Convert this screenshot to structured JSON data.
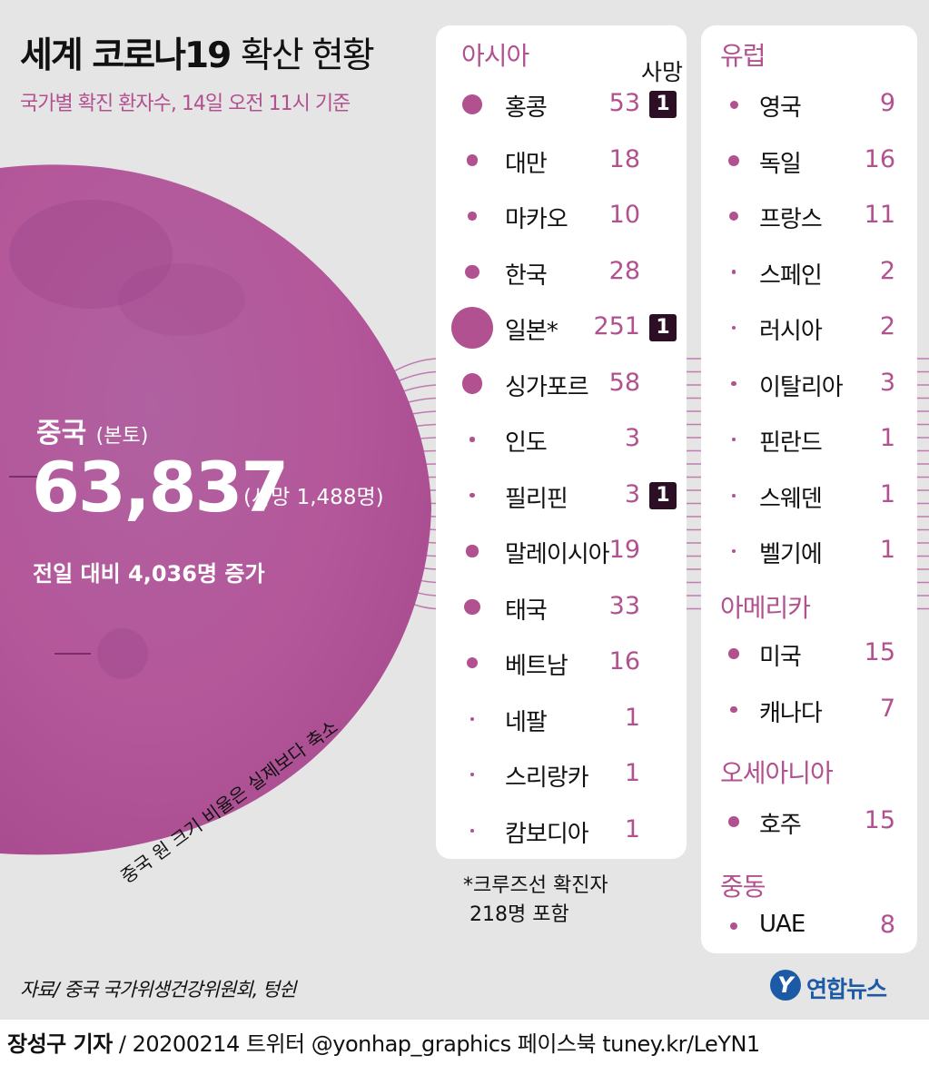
{
  "header": {
    "title_bold": "세계 코로나19",
    "title_light": "확산 현황",
    "subtitle": "국가별 확진 환자수, 14일 오전 11시 기준"
  },
  "china": {
    "name": "중국",
    "qualifier": "(본토)",
    "value": "63,837",
    "death_text": "(사망 1,488명)",
    "increase_text": "전일 대비 4,036명 증가",
    "scale_note": "중국 원 크기 비율은 실제보다 축소"
  },
  "death_header": "사망",
  "asia": {
    "title": "아시아",
    "items": [
      {
        "name": "홍콩",
        "value": "53",
        "death": "1",
        "size": 53
      },
      {
        "name": "대만",
        "value": "18",
        "death": "",
        "size": 18
      },
      {
        "name": "마카오",
        "value": "10",
        "death": "",
        "size": 10
      },
      {
        "name": "한국",
        "value": "28",
        "death": "",
        "size": 28
      },
      {
        "name": "일본*",
        "value": "251",
        "death": "1",
        "size": 251
      },
      {
        "name": "싱가포르",
        "value": "58",
        "death": "",
        "size": 58
      },
      {
        "name": "인도",
        "value": "3",
        "death": "",
        "size": 3
      },
      {
        "name": "필리핀",
        "value": "3",
        "death": "1",
        "size": 3
      },
      {
        "name": "말레이시아",
        "value": "19",
        "death": "",
        "size": 19
      },
      {
        "name": "태국",
        "value": "33",
        "death": "",
        "size": 33
      },
      {
        "name": "베트남",
        "value": "16",
        "death": "",
        "size": 16
      },
      {
        "name": "네팔",
        "value": "1",
        "death": "",
        "size": 1
      },
      {
        "name": "스리랑카",
        "value": "1",
        "death": "",
        "size": 1
      },
      {
        "name": "캄보디아",
        "value": "1",
        "death": "",
        "size": 1
      }
    ]
  },
  "europe": {
    "title": "유럽",
    "items": [
      {
        "name": "영국",
        "value": "9",
        "size": 9
      },
      {
        "name": "독일",
        "value": "16",
        "size": 16
      },
      {
        "name": "프랑스",
        "value": "11",
        "size": 11
      },
      {
        "name": "스페인",
        "value": "2",
        "size": 2
      },
      {
        "name": "러시아",
        "value": "2",
        "size": 2
      },
      {
        "name": "이탈리아",
        "value": "3",
        "size": 3
      },
      {
        "name": "핀란드",
        "value": "1",
        "size": 1
      },
      {
        "name": "스웨덴",
        "value": "1",
        "size": 1
      },
      {
        "name": "벨기에",
        "value": "1",
        "size": 1
      }
    ]
  },
  "america": {
    "title": "아메리카",
    "items": [
      {
        "name": "미국",
        "value": "15",
        "size": 15
      },
      {
        "name": "캐나다",
        "value": "7",
        "size": 7
      }
    ]
  },
  "oceania": {
    "title": "오세아니아",
    "items": [
      {
        "name": "호주",
        "value": "15",
        "size": 15
      }
    ]
  },
  "middle_east": {
    "title": "중동",
    "items": [
      {
        "name": "UAE",
        "value": "8",
        "size": 8
      }
    ]
  },
  "cruise_note": "*크루즈선 확진자\n 218명 포함",
  "source": "자료/ 중국 국가위생건강위원회, 텅쉰",
  "logo": {
    "icon": "Y",
    "text": "연합뉴스"
  },
  "footer": {
    "reporter": "장성구 기자",
    "info": " / 20200214 트위터 @yonhap_graphics  페이스북 tuney.kr/LeYN1"
  },
  "colors": {
    "accent": "#b2518f",
    "circle": "#b4579a",
    "badge": "#2c0f25",
    "background": "#e5e5e5"
  }
}
